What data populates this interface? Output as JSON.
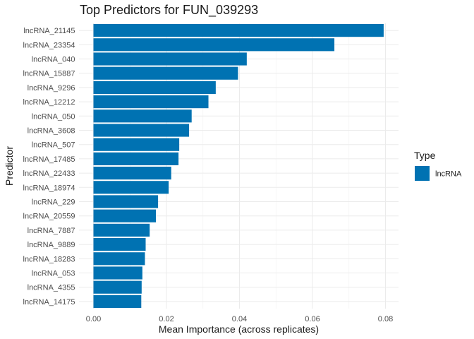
{
  "chart_data": {
    "type": "bar",
    "orientation": "horizontal",
    "title": "Top Predictors for FUN_039293",
    "xlabel": "Mean Importance (across replicates)",
    "ylabel": "Predictor",
    "xlim": [
      0,
      0.0815
    ],
    "x_ticks": [
      0.0,
      0.02,
      0.04,
      0.06,
      0.08
    ],
    "x_tick_labels": [
      "0.00",
      "0.02",
      "0.04",
      "0.06",
      "0.08"
    ],
    "grid": true,
    "legend": {
      "title": "Type",
      "position": "right",
      "entries": [
        {
          "label": "lncRNA",
          "color": "#0072b2"
        }
      ]
    },
    "categories": [
      "lncRNA_21145",
      "lncRNA_23354",
      "lncRNA_040",
      "lncRNA_15887",
      "lncRNA_9296",
      "lncRNA_12212",
      "lncRNA_050",
      "lncRNA_3608",
      "lncRNA_507",
      "lncRNA_17485",
      "lncRNA_22433",
      "lncRNA_18974",
      "lncRNA_229",
      "lncRNA_20559",
      "lncRNA_7887",
      "lncRNA_9889",
      "lncRNA_18283",
      "lncRNA_053",
      "lncRNA_4355",
      "lncRNA_14175"
    ],
    "values": [
      0.0795,
      0.066,
      0.042,
      0.0396,
      0.0335,
      0.0315,
      0.0269,
      0.0262,
      0.0235,
      0.0233,
      0.0213,
      0.0206,
      0.0177,
      0.0171,
      0.0154,
      0.0143,
      0.0141,
      0.0134,
      0.0132,
      0.0131
    ],
    "bar_color": "#0072b2"
  }
}
